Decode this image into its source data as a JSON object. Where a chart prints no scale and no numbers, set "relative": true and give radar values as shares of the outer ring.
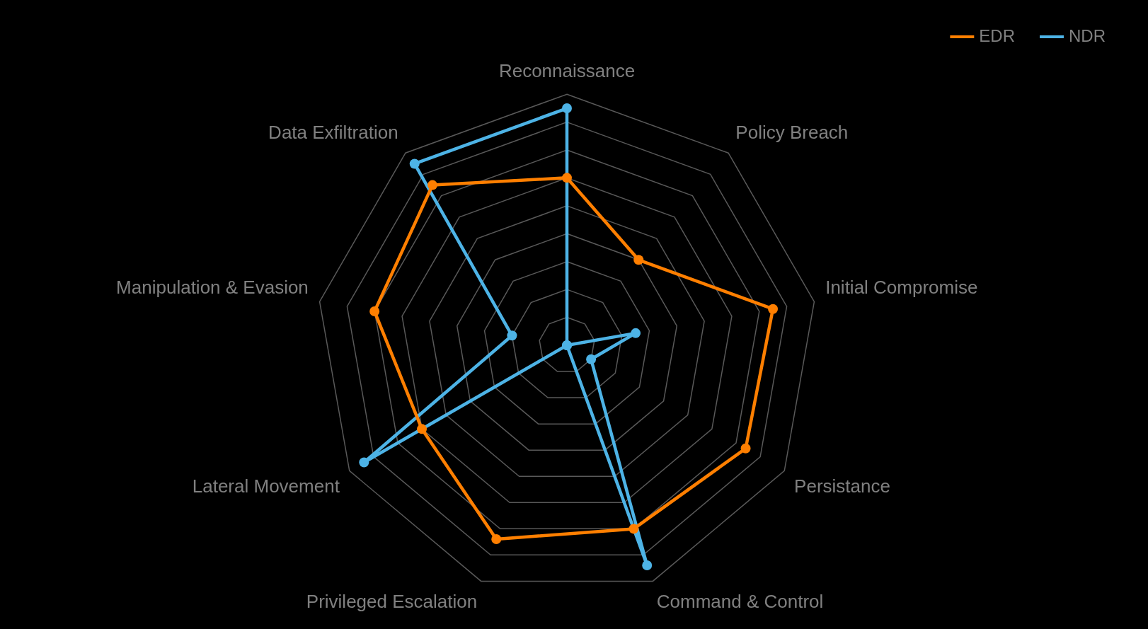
{
  "chart_data": {
    "type": "radar",
    "relative": true,
    "legend": "top right",
    "marker": "circle",
    "grid": true,
    "categories": [
      "Reconnaissance",
      "Policy Breach",
      "Initial Compromise",
      "Persistance",
      "Command & Control",
      "Privileged Escalation",
      "Lateral Movement",
      "Manipulation & Evasion",
      "Data Exfiltration"
    ],
    "series": [
      {
        "name": "EDR",
        "color": "#ff7f00",
        "values": [
          0.667,
          0.444,
          0.833,
          0.822,
          0.778,
          0.822,
          0.667,
          0.778,
          0.833
        ]
      },
      {
        "name": "NDR",
        "color": "#4db3e6",
        "values": [
          0.944,
          0,
          0.278,
          0.111,
          0.933,
          0,
          0.933,
          0.222,
          0.944
        ]
      }
    ]
  }
}
